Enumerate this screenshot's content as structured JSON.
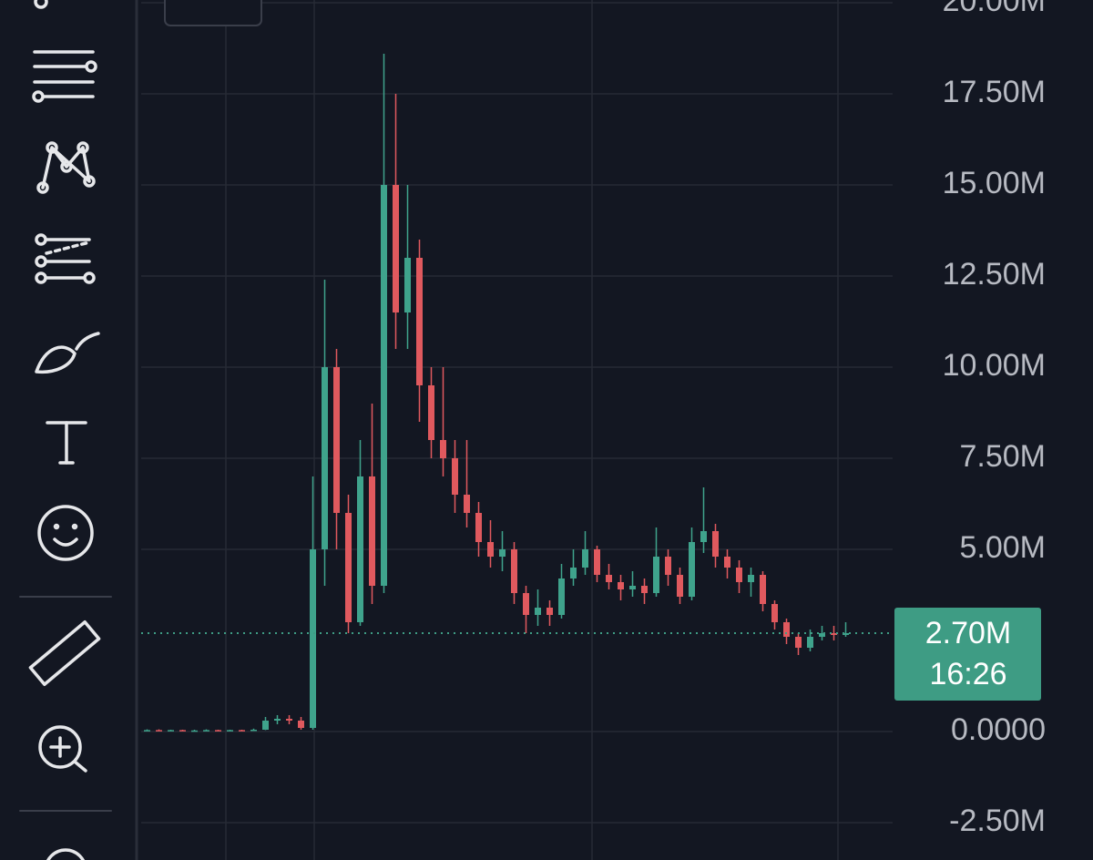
{
  "chart_data": {
    "type": "candlestick",
    "categories": [
      null,
      null,
      null,
      null,
      null,
      null,
      null,
      null,
      null,
      null,
      null,
      null,
      null,
      null,
      null,
      null,
      null,
      null,
      null,
      null,
      null,
      null,
      null,
      null,
      null,
      null,
      null,
      null,
      null,
      null,
      null,
      null,
      null,
      null,
      null,
      null,
      null,
      null,
      null,
      null,
      null,
      null,
      null,
      null,
      null,
      null,
      null,
      null,
      null,
      null,
      null,
      null,
      null,
      null,
      null,
      null,
      null,
      null,
      null,
      null
    ],
    "open": [
      0.03,
      0.04,
      0.03,
      0.04,
      0.03,
      0.03,
      0.04,
      0.03,
      0.04,
      0.03,
      0.05,
      0.3,
      0.35,
      0.3,
      0.1,
      5,
      10,
      6,
      3,
      7,
      4,
      15,
      11.5,
      13,
      9.5,
      8,
      7.5,
      6.5,
      6,
      5.2,
      4.8,
      5,
      3.8,
      3.2,
      3.4,
      3.2,
      4.2,
      4.5,
      5,
      4.3,
      4.1,
      3.9,
      4,
      3.8,
      4.8,
      4.3,
      3.7,
      5.2,
      5.5,
      4.8,
      4.5,
      4.1,
      4.3,
      3.5,
      3,
      2.6,
      2.3,
      2.6,
      2.7,
      2.65
    ],
    "high": [
      0.06,
      0.06,
      0.05,
      0.05,
      0.05,
      0.06,
      0.05,
      0.05,
      0.05,
      0.08,
      0.4,
      0.45,
      0.45,
      0.4,
      7,
      12.4,
      10.5,
      6.5,
      8,
      9,
      18.6,
      17.5,
      15,
      13.5,
      10,
      10,
      8,
      8,
      6.3,
      5.8,
      5.5,
      5.2,
      4,
      3.9,
      3.6,
      4.6,
      5,
      5.5,
      5.1,
      4.6,
      4.3,
      4.4,
      4.2,
      5.6,
      5,
      4.5,
      5.6,
      6.7,
      5.7,
      5,
      4.7,
      4.5,
      4.4,
      3.6,
      3.1,
      2.7,
      2.8,
      2.9,
      2.9,
      3
    ],
    "low": [
      0.02,
      0.02,
      0.02,
      0.02,
      0.02,
      0.02,
      0.02,
      0.02,
      0.02,
      0.02,
      0.04,
      0.2,
      0.2,
      0.05,
      0.05,
      4,
      5,
      2.7,
      2.9,
      3.5,
      3.8,
      10.5,
      10.5,
      8.5,
      7.5,
      7,
      6,
      5.6,
      4.8,
      4.5,
      4.4,
      3.5,
      2.7,
      2.9,
      2.9,
      3.1,
      4,
      4.3,
      4.1,
      3.9,
      3.6,
      3.7,
      3.5,
      3.7,
      4,
      3.5,
      3.6,
      4.9,
      4.5,
      4.2,
      3.8,
      3.7,
      3.3,
      2.8,
      2.4,
      2.1,
      2.2,
      2.5,
      2.5,
      2.6
    ],
    "close": [
      0.04,
      0.03,
      0.04,
      0.03,
      0.03,
      0.04,
      0.03,
      0.04,
      0.03,
      0.05,
      0.3,
      0.35,
      0.3,
      0.1,
      5,
      10,
      6,
      3,
      7,
      4,
      15,
      11.5,
      13,
      9.5,
      8,
      7.5,
      6.5,
      6,
      5.2,
      4.8,
      5,
      3.8,
      3.2,
      3.4,
      3.2,
      4.2,
      4.5,
      5,
      4.3,
      4.1,
      3.9,
      4,
      3.8,
      4.8,
      4.3,
      3.7,
      5.2,
      5.5,
      4.8,
      4.5,
      4.1,
      4.3,
      3.5,
      3,
      2.6,
      2.3,
      2.6,
      2.7,
      2.65,
      2.7
    ],
    "up_color": "#3fa38c",
    "down_color": "#e0595e",
    "ylim": [
      -3.525,
      20.075
    ],
    "yticks": [
      {
        "value": -2.5,
        "label": "-2.50M"
      },
      {
        "value": 0,
        "label": "0.0000"
      },
      {
        "value": 5,
        "label": "5.00M"
      },
      {
        "value": 7.5,
        "label": "7.50M"
      },
      {
        "value": 10,
        "label": "10.00M"
      },
      {
        "value": 12.5,
        "label": "12.50M"
      },
      {
        "value": 15,
        "label": "15.00M"
      },
      {
        "value": 17.5,
        "label": "17.50M"
      },
      {
        "value": 20,
        "label": "20.00M"
      }
    ],
    "grid": true,
    "last_price": {
      "value": 2.7,
      "label": "2.70M",
      "countdown": "16:26",
      "color": "#3e9c84"
    }
  }
}
